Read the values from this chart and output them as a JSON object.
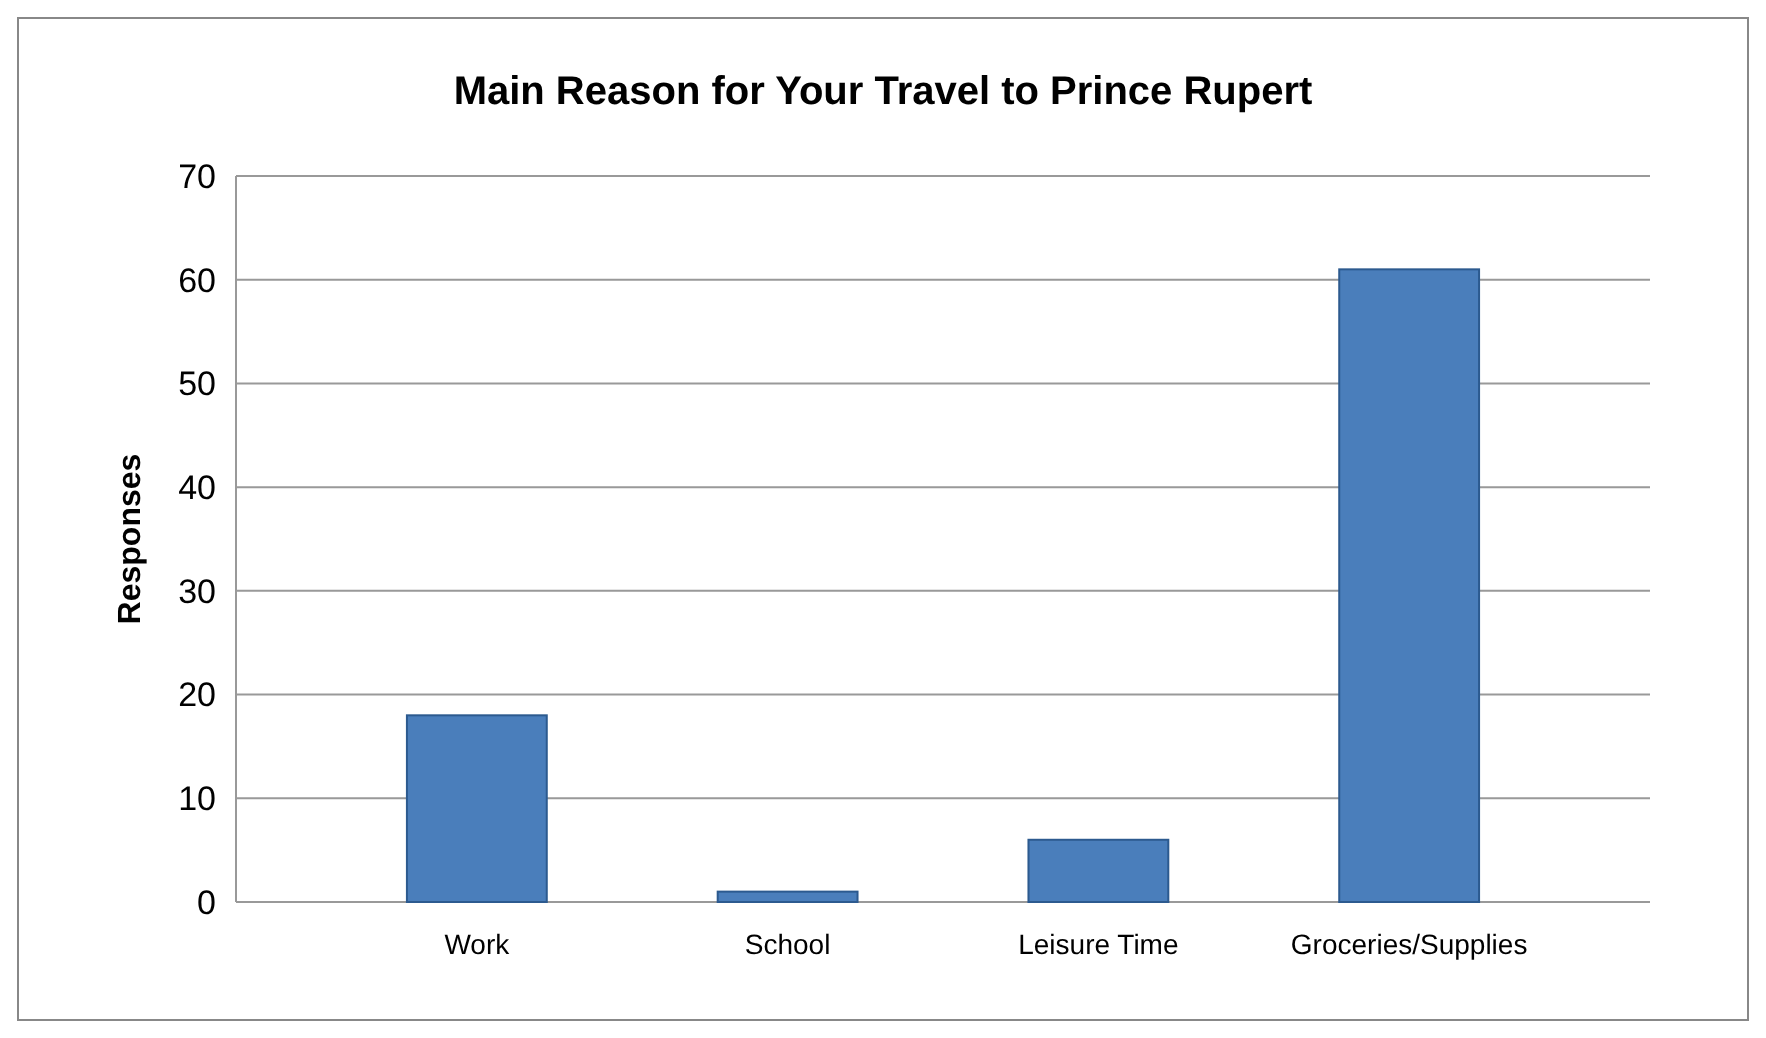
{
  "chart_data": {
    "type": "bar",
    "title": "Main Reason for Your Travel to Prince Rupert",
    "ylabel": "Responses",
    "categories": [
      "Work",
      "School",
      "Leisure Time",
      "Groceries/Supplies"
    ],
    "values": [
      18,
      1,
      6,
      61
    ],
    "color": "#4a7ebb",
    "ylim": [
      0,
      70
    ],
    "yticks": [
      0,
      10,
      20,
      30,
      40,
      50,
      60,
      70
    ],
    "grid": true
  }
}
